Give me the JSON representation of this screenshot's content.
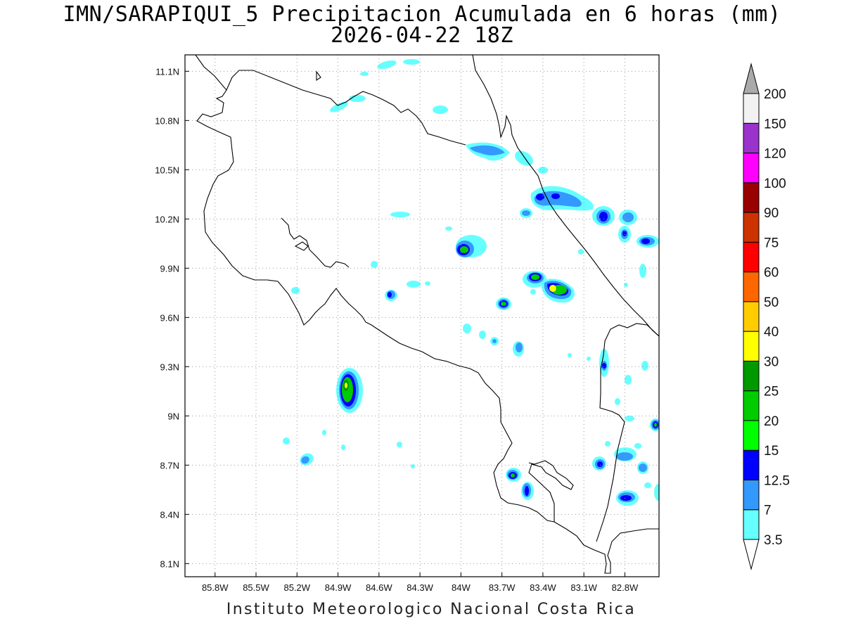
{
  "title": {
    "line1": "IMN/SARAPIQUI_5 Precipitacion Acumulada en 6 horas (mm)",
    "line2": "2026-04-22 18Z"
  },
  "credit": "Instituto Meteorologico Nacional Costa Rica",
  "map": {
    "lon_range": [
      -86.02,
      -82.55
    ],
    "lat_range": [
      8.02,
      11.2
    ],
    "lon_ticks": [
      "85.8W",
      "85.5W",
      "85.2W",
      "84.9W",
      "84.6W",
      "84.3W",
      "84W",
      "83.7W",
      "83.4W",
      "83.1W",
      "82.8W"
    ],
    "lon_tick_values": [
      -85.8,
      -85.5,
      -85.2,
      -84.9,
      -84.6,
      -84.3,
      -84.0,
      -83.7,
      -83.4,
      -83.1,
      -82.8
    ],
    "lat_ticks": [
      "11.1N",
      "10.8N",
      "10.5N",
      "10.2N",
      "9.9N",
      "9.6N",
      "9.3N",
      "9N",
      "8.7N",
      "8.4N",
      "8.1N"
    ],
    "lat_tick_values": [
      11.1,
      10.8,
      10.5,
      10.2,
      9.9,
      9.6,
      9.3,
      9.0,
      8.7,
      8.4,
      8.1
    ],
    "grid": "dotted"
  },
  "colorbar": {
    "labels": [
      "3.5",
      "7",
      "12.5",
      "15",
      "20",
      "25",
      "30",
      "40",
      "50",
      "60",
      "75",
      "90",
      "100",
      "120",
      "150",
      "200"
    ],
    "colors": [
      "#66ffff",
      "#3399ff",
      "#0000ff",
      "#00ff00",
      "#00cc00",
      "#009900",
      "#ffff00",
      "#ffcc00",
      "#ff6600",
      "#ff0000",
      "#cc3300",
      "#990000",
      "#ff00ff",
      "#9933cc",
      "#f2f2f2",
      "#aaaaaa"
    ]
  },
  "precip_cells": [
    {
      "lon": -84.83,
      "lat": 9.18,
      "level": 5
    },
    {
      "lon": -83.29,
      "lat": 9.81,
      "level": 6
    },
    {
      "lon": -83.41,
      "lat": 9.89,
      "level": 5
    },
    {
      "lon": -83.97,
      "lat": 10.07,
      "level": 5
    },
    {
      "lon": -83.66,
      "lat": 9.72,
      "level": 5
    },
    {
      "lon": -83.42,
      "lat": 10.4,
      "level": 2
    },
    {
      "lon": -83.29,
      "lat": 10.39,
      "level": 2
    },
    {
      "lon": -82.86,
      "lat": 10.27,
      "level": 4
    },
    {
      "lon": -82.61,
      "lat": 10.13,
      "level": 2
    },
    {
      "lon": -83.61,
      "lat": 8.63,
      "level": 4
    },
    {
      "lon": -83.52,
      "lat": 8.53,
      "level": 2
    },
    {
      "lon": -82.82,
      "lat": 8.5,
      "level": 2
    },
    {
      "lon": -82.87,
      "lat": 9.33,
      "level": 4
    },
    {
      "lon": -82.56,
      "lat": 8.94,
      "level": 4
    },
    {
      "lon": -84.49,
      "lat": 9.78,
      "level": 2
    },
    {
      "lon": -82.9,
      "lat": 8.7,
      "level": 2
    },
    {
      "lon": -83.55,
      "lat": 9.43,
      "level": 1
    },
    {
      "lon": -83.87,
      "lat": 10.72,
      "level": 1
    },
    {
      "lon": -84.1,
      "lat": 10.97,
      "level": 1
    },
    {
      "lon": -84.78,
      "lat": 10.98,
      "level": 1
    },
    {
      "lon": -85.12,
      "lat": 8.73,
      "level": 1
    }
  ]
}
